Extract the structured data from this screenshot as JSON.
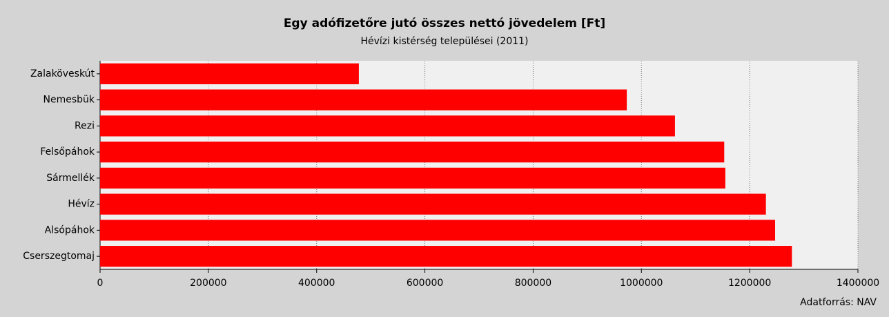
{
  "chart_data": {
    "type": "barh",
    "title": "Egy adófizetőre jutó összes nettó jövedelem [Ft]",
    "subtitle": "Hévízi kistérség települései (2011)",
    "source": "Adatforrás: NAV",
    "categories": [
      "Zalaköveskút",
      "Nemesbük",
      "Rezi",
      "Felsőpáhok",
      "Sármellék",
      "Hévíz",
      "Alsópáhok",
      "Cserszegtomaj"
    ],
    "values": [
      478000,
      973000,
      1062000,
      1153000,
      1155000,
      1230000,
      1247000,
      1278000
    ],
    "color": "#ff0000",
    "xlim": [
      0,
      1400000
    ],
    "xticks": [
      0,
      200000,
      400000,
      600000,
      800000,
      1000000,
      1200000,
      1400000
    ],
    "grid": true
  }
}
